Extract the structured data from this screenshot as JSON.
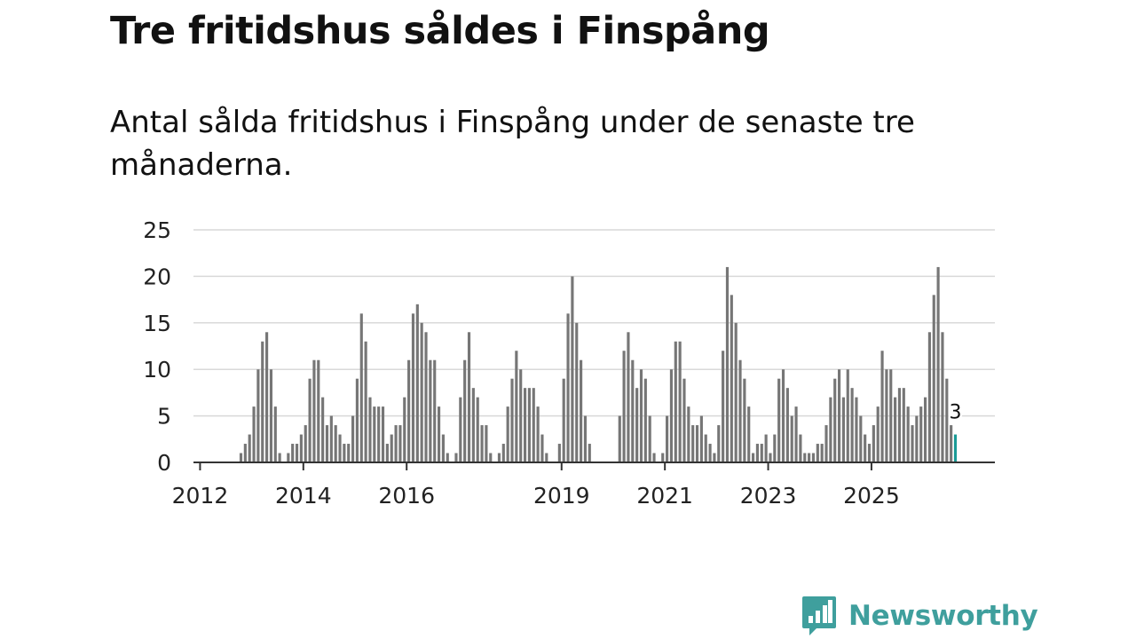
{
  "title": "Tre fritidshus såldes i Finspång",
  "subtitle": "Antal sålda fritidshus i Finspång under de senaste tre månaderna.",
  "brand": {
    "name": "Newsworthy",
    "logo_icon": "newsworthy-chart-bubble-icon",
    "color": "#3f9f9d"
  },
  "chart_data": {
    "type": "bar",
    "y_ticks": [
      "0",
      "5",
      "10",
      "15",
      "20",
      "25"
    ],
    "ylim": [
      0,
      25
    ],
    "grid": true,
    "x_tick_labels": [
      {
        "label": "2012",
        "year": 2012
      },
      {
        "label": "2014",
        "year": 2014
      },
      {
        "label": "2016",
        "year": 2016
      },
      {
        "label": "2019",
        "year": 2019
      },
      {
        "label": "2021",
        "year": 2021
      },
      {
        "label": "2023",
        "year": 2023
      },
      {
        "label": "2025",
        "year": 2025
      }
    ],
    "start_month": "2011-12",
    "values": [
      0,
      0,
      0,
      0,
      0,
      0,
      0,
      0,
      0,
      0,
      1,
      2,
      3,
      6,
      10,
      13,
      14,
      10,
      6,
      1,
      0,
      1,
      2,
      2,
      3,
      4,
      9,
      11,
      11,
      7,
      4,
      5,
      4,
      3,
      2,
      2,
      5,
      9,
      16,
      13,
      7,
      6,
      6,
      6,
      2,
      3,
      4,
      4,
      7,
      11,
      16,
      17,
      15,
      14,
      11,
      11,
      6,
      3,
      1,
      0,
      1,
      7,
      11,
      14,
      8,
      7,
      4,
      4,
      1,
      0,
      1,
      2,
      6,
      9,
      12,
      10,
      8,
      8,
      8,
      6,
      3,
      1,
      0,
      0,
      2,
      9,
      16,
      20,
      15,
      11,
      5,
      2,
      0,
      0,
      0,
      0,
      0,
      0,
      5,
      12,
      14,
      11,
      8,
      10,
      9,
      5,
      1,
      0,
      1,
      5,
      10,
      13,
      13,
      9,
      6,
      4,
      4,
      5,
      3,
      2,
      1,
      4,
      12,
      21,
      18,
      15,
      11,
      9,
      6,
      1,
      2,
      2,
      3,
      1,
      3,
      9,
      10,
      8,
      5,
      6,
      3,
      1,
      1,
      1,
      2,
      2,
      4,
      7,
      9,
      10,
      7,
      10,
      8,
      7,
      5,
      3,
      2,
      4,
      6,
      12,
      10,
      10,
      7,
      8,
      8,
      6,
      4,
      5,
      6,
      7,
      14,
      18,
      21,
      14,
      9,
      4,
      3
    ],
    "highlight": {
      "label": "3",
      "value": 3,
      "color": "#1a9b96"
    },
    "colors": {
      "bar": "#767676",
      "grid": "#d9d9d9",
      "axis": "#333333"
    }
  }
}
